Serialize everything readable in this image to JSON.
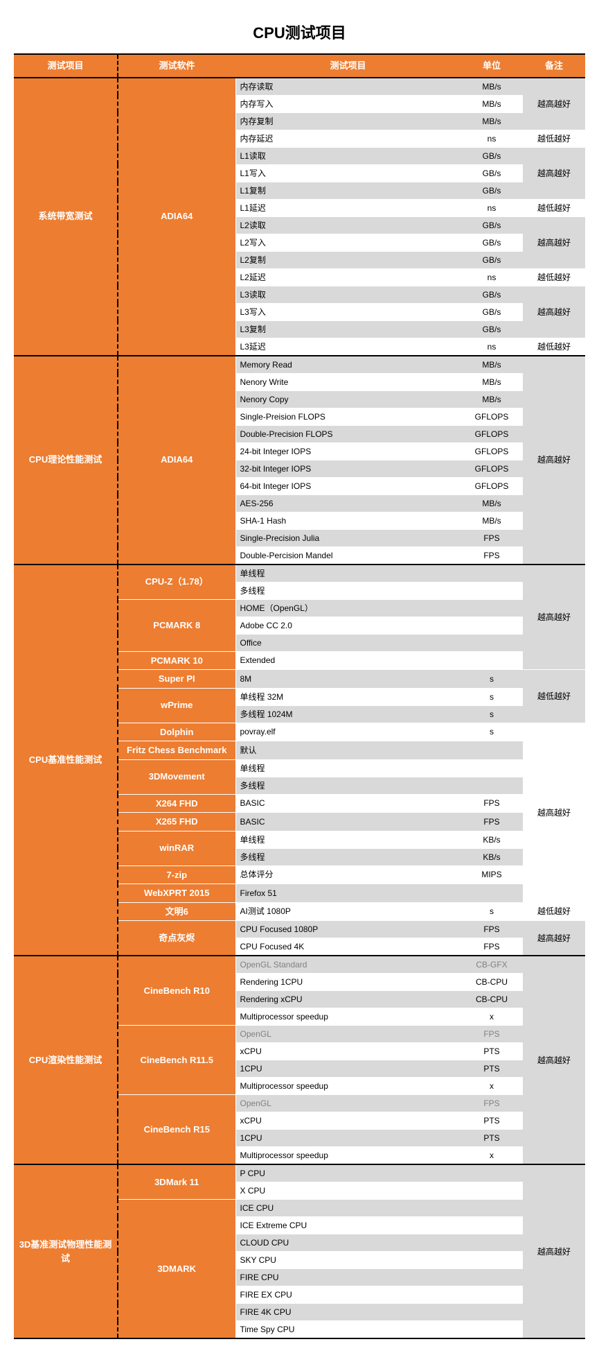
{
  "title": "CPU测试项目",
  "colors": {
    "accent": "#ed7d31",
    "row_even": "#d9d9d9",
    "row_odd": "#ffffff",
    "header_text": "#ffffff",
    "body_text": "#000000",
    "greyed": "#808080",
    "border": "#000000"
  },
  "headers": {
    "category": "测试项目",
    "software": "测试软件",
    "item": "测试项目",
    "unit": "单位",
    "note": "备注"
  },
  "notes": {
    "higher": "越高越好",
    "lower": "越低越好"
  },
  "sections": [
    {
      "category": "系统带宽测试",
      "groups": [
        {
          "software": "ADIA64",
          "rows": [
            {
              "item": "内存读取",
              "unit": "MB/s",
              "note_span": 3,
              "note": "higher"
            },
            {
              "item": "内存写入",
              "unit": "MB/s"
            },
            {
              "item": "内存复制",
              "unit": "MB/s"
            },
            {
              "item": "内存延迟",
              "unit": "ns",
              "note_span": 1,
              "note": "lower"
            },
            {
              "item": "L1读取",
              "unit": "GB/s",
              "note_span": 3,
              "note": "higher"
            },
            {
              "item": "L1写入",
              "unit": "GB/s"
            },
            {
              "item": "L1复制",
              "unit": "GB/s"
            },
            {
              "item": "L1延迟",
              "unit": "ns",
              "note_span": 1,
              "note": "lower"
            },
            {
              "item": "L2读取",
              "unit": "GB/s",
              "note_span": 3,
              "note": "higher"
            },
            {
              "item": "L2写入",
              "unit": "GB/s"
            },
            {
              "item": "L2复制",
              "unit": "GB/s"
            },
            {
              "item": "L2延迟",
              "unit": "ns",
              "note_span": 1,
              "note": "lower"
            },
            {
              "item": "L3读取",
              "unit": "GB/s",
              "note_span": 3,
              "note": "higher"
            },
            {
              "item": "L3写入",
              "unit": "GB/s"
            },
            {
              "item": "L3复制",
              "unit": "GB/s"
            },
            {
              "item": "L3延迟",
              "unit": "ns",
              "note_span": 1,
              "note": "lower"
            }
          ]
        }
      ]
    },
    {
      "category": "CPU理论性能测试",
      "groups": [
        {
          "software": "ADIA64",
          "rows": [
            {
              "item": "Memory Read",
              "unit": "MB/s",
              "note_span": 12,
              "note": "higher"
            },
            {
              "item": "Nenory Write",
              "unit": "MB/s"
            },
            {
              "item": "Nenory Copy",
              "unit": "MB/s"
            },
            {
              "item": "Single-Preision FLOPS",
              "unit": "GFLOPS"
            },
            {
              "item": "Double-Precision FLOPS",
              "unit": "GFLOPS"
            },
            {
              "item": "24-bit Integer IOPS",
              "unit": "GFLOPS"
            },
            {
              "item": "32-bit Integer IOPS",
              "unit": "GFLOPS"
            },
            {
              "item": "64-bit Integer IOPS",
              "unit": "GFLOPS"
            },
            {
              "item": "AES-256",
              "unit": "MB/s"
            },
            {
              "item": "SHA-1 Hash",
              "unit": "MB/s"
            },
            {
              "item": "Single-Precision Julia",
              "unit": "FPS"
            },
            {
              "item": "Double-Percision Mandel",
              "unit": "FPS"
            }
          ]
        }
      ]
    },
    {
      "category": "CPU基准性能测试",
      "groups": [
        {
          "software": "CPU-Z（1.78）",
          "rows": [
            {
              "item": "单线程",
              "unit": "",
              "note_span": 6,
              "note": "higher"
            },
            {
              "item": "多线程",
              "unit": ""
            }
          ]
        },
        {
          "software": "PCMARK 8",
          "rows": [
            {
              "item": "HOME（OpenGL）",
              "unit": ""
            },
            {
              "item": "Adobe CC 2.0",
              "unit": ""
            },
            {
              "item": "Office",
              "unit": ""
            }
          ]
        },
        {
          "software": "PCMARK 10",
          "rows": [
            {
              "item": "Extended",
              "unit": ""
            }
          ]
        },
        {
          "software": "Super PI",
          "rows": [
            {
              "item": "8M",
              "unit": "s",
              "note_span": 3,
              "note": "lower"
            }
          ]
        },
        {
          "software": "wPrime",
          "rows": [
            {
              "item": "单线程 32M",
              "unit": "s"
            },
            {
              "item": "多线程 1024M",
              "unit": "s"
            }
          ]
        },
        {
          "software": "Dolphin",
          "rows": [
            {
              "item": "povray.elf",
              "unit": "s",
              "note_span": 10,
              "note": "higher"
            }
          ]
        },
        {
          "software": "Fritz Chess Benchmark",
          "rows": [
            {
              "item": "默认",
              "unit": ""
            }
          ]
        },
        {
          "software": "3DMovement",
          "rows": [
            {
              "item": "单线程",
              "unit": ""
            },
            {
              "item": "多线程",
              "unit": ""
            }
          ]
        },
        {
          "software": "X264 FHD",
          "rows": [
            {
              "item": "BASIC",
              "unit": "FPS"
            }
          ]
        },
        {
          "software": "X265 FHD",
          "rows": [
            {
              "item": "BASIC",
              "unit": "FPS"
            }
          ]
        },
        {
          "software": "winRAR",
          "rows": [
            {
              "item": "单线程",
              "unit": "KB/s"
            },
            {
              "item": "多线程",
              "unit": "KB/s"
            }
          ]
        },
        {
          "software": "7-zip",
          "rows": [
            {
              "item": "总体评分",
              "unit": "MIPS"
            }
          ]
        },
        {
          "software": "WebXPRT 2015",
          "rows": [
            {
              "item": "Firefox 51",
              "unit": ""
            }
          ]
        },
        {
          "software": "文明6",
          "rows": [
            {
              "item": "AI测试 1080P",
              "unit": "s",
              "note_span": 1,
              "note": "lower"
            }
          ]
        },
        {
          "software": "奇点灰烬",
          "rows": [
            {
              "item": "CPU Focused 1080P",
              "unit": "FPS",
              "note_span": 2,
              "note": "higher"
            },
            {
              "item": "CPU Focused 4K",
              "unit": "FPS"
            }
          ]
        }
      ]
    },
    {
      "category": "CPU渲染性能测试",
      "groups": [
        {
          "software": "CineBench R10",
          "rows": [
            {
              "item": "OpenGL Standard",
              "unit": "CB-GFX",
              "grey": true,
              "note_span": 12,
              "note": "higher"
            },
            {
              "item": "Rendering 1CPU",
              "unit": "CB-CPU"
            },
            {
              "item": "Rendering xCPU",
              "unit": "CB-CPU"
            },
            {
              "item": "Multiprocessor speedup",
              "unit": "x"
            }
          ]
        },
        {
          "software": "CineBench R11.5",
          "rows": [
            {
              "item": "OpenGL",
              "unit": "FPS",
              "grey": true
            },
            {
              "item": "xCPU",
              "unit": "PTS"
            },
            {
              "item": "1CPU",
              "unit": "PTS"
            },
            {
              "item": "Multiprocessor speedup",
              "unit": "x"
            }
          ]
        },
        {
          "software": "CineBench R15",
          "rows": [
            {
              "item": "OpenGL",
              "unit": "FPS",
              "grey": true
            },
            {
              "item": "xCPU",
              "unit": "PTS"
            },
            {
              "item": "1CPU",
              "unit": "PTS"
            },
            {
              "item": "Multiprocessor speedup",
              "unit": "x"
            }
          ]
        }
      ]
    },
    {
      "category": "3D基准测试物理性能测试",
      "groups": [
        {
          "software": "3DMark 11",
          "rows": [
            {
              "item": "P CPU",
              "unit": "",
              "note_span": 10,
              "note": "higher"
            },
            {
              "item": "X CPU",
              "unit": ""
            }
          ]
        },
        {
          "software": "3DMARK",
          "rows": [
            {
              "item": "ICE CPU",
              "unit": ""
            },
            {
              "item": "ICE Extreme CPU",
              "unit": ""
            },
            {
              "item": "CLOUD CPU",
              "unit": ""
            },
            {
              "item": "SKY CPU",
              "unit": ""
            },
            {
              "item": "FIRE CPU",
              "unit": ""
            },
            {
              "item": "FIRE EX CPU",
              "unit": ""
            },
            {
              "item": "FIRE 4K CPU",
              "unit": ""
            },
            {
              "item": "Time Spy CPU",
              "unit": ""
            }
          ]
        }
      ]
    }
  ]
}
